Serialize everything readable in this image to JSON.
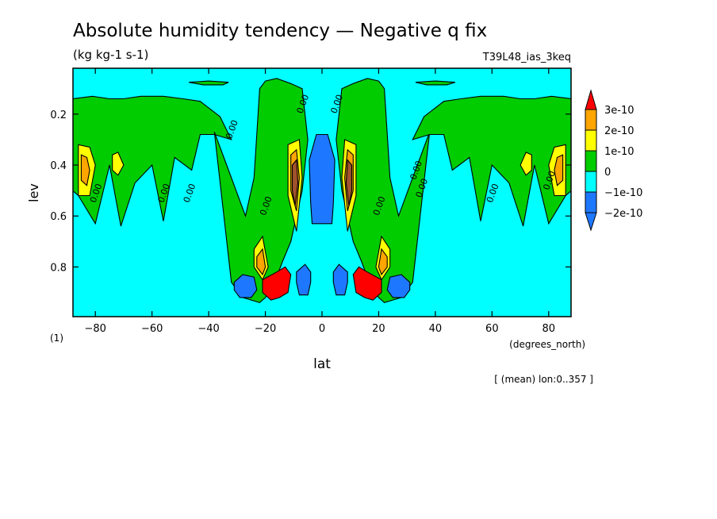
{
  "chart_data": {
    "type": "heatmap",
    "title": "Absolute humidity tendency — Negative q fix",
    "units": "(kg kg-1 s-1)",
    "experiment": "T39L48_ias_3keq",
    "xlabel": "lat",
    "xunits": "(degrees_north)",
    "ylabel": "lev",
    "yunits": "(1)",
    "footnote": "[ (mean) lon:0..357 ]",
    "xlim": [
      -87.9,
      87.9
    ],
    "ylim": [
      0.995,
      0.02
    ],
    "xticks": [
      -80,
      -60,
      -40,
      -20,
      0,
      20,
      40,
      60,
      80
    ],
    "yticks": [
      0.2,
      0.4,
      0.6,
      0.8
    ],
    "contour_label": "0.00",
    "colorbar": [
      {
        "label": "3e-10",
        "color": "#ff0000"
      },
      {
        "label": "2e-10",
        "color": "#ffa500"
      },
      {
        "label": "1e-10",
        "color": "#ffff00"
      },
      {
        "label": "0",
        "color": "#00cc00"
      },
      {
        "label": "−1e-10",
        "color": "#00ffff"
      },
      {
        "label": "−2e-10",
        "color": "#1e78ff"
      }
    ],
    "colors": {
      "gt3e-10": "#ff0000",
      "2e-10_3e-10": "#ffa500",
      "1e-10_2e-10": "#ffff00",
      "0_1e-10": "#00cc00",
      "-1e-10_0": "#00ffff",
      "lt-1e-10": "#1e78ff",
      "dark_core": "#a0522d"
    },
    "regions": [
      {
        "level": "0_1e-10",
        "lat": [
          -88,
          -81,
          -75,
          -70,
          -64,
          -56,
          -49,
          -43,
          -36,
          -32,
          -38,
          -43,
          -46,
          -52,
          -56,
          -60,
          -66,
          -71,
          -75,
          -80,
          -86,
          -88
        ],
        "lev": [
          0.14,
          0.13,
          0.14,
          0.14,
          0.13,
          0.13,
          0.14,
          0.15,
          0.21,
          0.3,
          0.28,
          0.28,
          0.42,
          0.37,
          0.62,
          0.4,
          0.47,
          0.64,
          0.4,
          0.63,
          0.52,
          0.5
        ]
      },
      {
        "level": "0_1e-10",
        "lat": [
          -22,
          -20,
          -16,
          -11,
          -7,
          -5,
          -7,
          -9,
          -11,
          -14,
          -16,
          -18,
          -20,
          -22,
          -28,
          -32,
          -38,
          -32,
          -27,
          -24,
          -22
        ],
        "lev": [
          0.1,
          0.07,
          0.06,
          0.08,
          0.1,
          0.3,
          0.5,
          0.6,
          0.7,
          0.78,
          0.84,
          0.88,
          0.92,
          0.94,
          0.92,
          0.86,
          0.27,
          0.45,
          0.6,
          0.45,
          0.1
        ]
      },
      {
        "level": "0_1e-10",
        "lat": [
          22,
          20,
          16,
          11,
          7,
          5,
          7,
          9,
          11,
          14,
          16,
          18,
          20,
          22,
          28,
          32,
          38,
          32,
          27,
          24,
          22
        ],
        "lev": [
          0.1,
          0.07,
          0.06,
          0.08,
          0.1,
          0.3,
          0.5,
          0.6,
          0.7,
          0.78,
          0.84,
          0.88,
          0.92,
          0.94,
          0.92,
          0.86,
          0.27,
          0.45,
          0.6,
          0.45,
          0.1
        ]
      },
      {
        "level": "0_1e-10",
        "lat": [
          88,
          81,
          75,
          70,
          64,
          56,
          49,
          43,
          36,
          32,
          38,
          43,
          46,
          52,
          56,
          60,
          66,
          71,
          75,
          80,
          86,
          88
        ],
        "lev": [
          0.14,
          0.13,
          0.14,
          0.14,
          0.13,
          0.13,
          0.14,
          0.15,
          0.21,
          0.3,
          0.28,
          0.28,
          0.42,
          0.37,
          0.62,
          0.4,
          0.47,
          0.64,
          0.4,
          0.63,
          0.52,
          0.5
        ]
      },
      {
        "level": "0_1e-10",
        "lat": [
          -47,
          -40,
          -33,
          -35,
          -42,
          -47
        ],
        "lev": [
          0.075,
          0.07,
          0.075,
          0.085,
          0.085,
          0.075
        ]
      },
      {
        "level": "0_1e-10",
        "lat": [
          33,
          40,
          47,
          44,
          37,
          33
        ],
        "lev": [
          0.075,
          0.07,
          0.075,
          0.085,
          0.085,
          0.075
        ]
      },
      {
        "level": "1e-10_2e-10",
        "lat": [
          -86,
          -82,
          -80,
          -82,
          -86
        ],
        "lev": [
          0.32,
          0.33,
          0.4,
          0.52,
          0.52
        ]
      },
      {
        "level": "1e-10_2e-10",
        "lat": [
          -74,
          -72,
          -70,
          -72,
          -74
        ],
        "lev": [
          0.36,
          0.35,
          0.4,
          0.44,
          0.42
        ]
      },
      {
        "level": "1e-10_2e-10",
        "lat": [
          -12,
          -8,
          -7,
          -9,
          -12
        ],
        "lev": [
          0.32,
          0.3,
          0.45,
          0.66,
          0.52
        ]
      },
      {
        "level": "1e-10_2e-10",
        "lat": [
          -24,
          -21,
          -19,
          -21,
          -24
        ],
        "lev": [
          0.73,
          0.68,
          0.8,
          0.85,
          0.8
        ]
      },
      {
        "level": "1e-10_2e-10",
        "lat": [
          12,
          8,
          7,
          9,
          12
        ],
        "lev": [
          0.32,
          0.3,
          0.45,
          0.66,
          0.52
        ]
      },
      {
        "level": "1e-10_2e-10",
        "lat": [
          24,
          21,
          19,
          21,
          24
        ],
        "lev": [
          0.73,
          0.68,
          0.8,
          0.85,
          0.8
        ]
      },
      {
        "level": "1e-10_2e-10",
        "lat": [
          86,
          82,
          80,
          82,
          86
        ],
        "lev": [
          0.32,
          0.33,
          0.4,
          0.52,
          0.52
        ]
      },
      {
        "level": "1e-10_2e-10",
        "lat": [
          74,
          72,
          70,
          72,
          74
        ],
        "lev": [
          0.36,
          0.35,
          0.4,
          0.44,
          0.42
        ]
      },
      {
        "level": "2e-10_3e-10",
        "lat": [
          -11,
          -9,
          -8,
          -9,
          -11
        ],
        "lev": [
          0.36,
          0.34,
          0.45,
          0.58,
          0.5
        ]
      },
      {
        "level": "2e-10_3e-10",
        "lat": [
          -23,
          -21,
          -20,
          -21,
          -23
        ],
        "lev": [
          0.76,
          0.73,
          0.8,
          0.83,
          0.8
        ]
      },
      {
        "level": "2e-10_3e-10",
        "lat": [
          11,
          9,
          8,
          9,
          11
        ],
        "lev": [
          0.36,
          0.34,
          0.45,
          0.58,
          0.5
        ]
      },
      {
        "level": "2e-10_3e-10",
        "lat": [
          23,
          21,
          20,
          21,
          23
        ],
        "lev": [
          0.76,
          0.73,
          0.8,
          0.83,
          0.8
        ]
      },
      {
        "level": "2e-10_3e-10",
        "lat": [
          -85,
          -83,
          -82,
          -83,
          -85
        ],
        "lev": [
          0.36,
          0.37,
          0.42,
          0.48,
          0.46
        ]
      },
      {
        "level": "2e-10_3e-10",
        "lat": [
          85,
          83,
          82,
          83,
          85
        ],
        "lev": [
          0.36,
          0.37,
          0.42,
          0.48,
          0.46
        ]
      },
      {
        "level": "dark_core",
        "lat": [
          -10.5,
          -9,
          -8.5,
          -9.5,
          -10.5
        ],
        "lev": [
          0.4,
          0.38,
          0.47,
          0.56,
          0.5
        ]
      },
      {
        "level": "dark_core",
        "lat": [
          10.5,
          9,
          8.5,
          9.5,
          10.5
        ],
        "lev": [
          0.4,
          0.38,
          0.47,
          0.56,
          0.5
        ]
      },
      {
        "level": "lt-1e-10",
        "lat": [
          -4.5,
          -2,
          2,
          4.5,
          4,
          3.5,
          -3.5,
          -4,
          -4.5
        ],
        "lev": [
          0.38,
          0.28,
          0.28,
          0.38,
          0.55,
          0.63,
          0.63,
          0.55,
          0.38
        ]
      },
      {
        "level": "lt-1e-10",
        "lat": [
          -31,
          -28,
          -24,
          -23,
          -25,
          -29,
          -31
        ],
        "lev": [
          0.86,
          0.83,
          0.84,
          0.89,
          0.92,
          0.92,
          0.89
        ]
      },
      {
        "level": "lt-1e-10",
        "lat": [
          -9,
          -6,
          -4,
          -4,
          -5,
          -8,
          -9
        ],
        "lev": [
          0.82,
          0.79,
          0.82,
          0.86,
          0.91,
          0.91,
          0.86
        ]
      },
      {
        "level": "lt-1e-10",
        "lat": [
          31,
          28,
          24,
          23,
          25,
          29,
          31
        ],
        "lev": [
          0.86,
          0.83,
          0.84,
          0.89,
          0.92,
          0.92,
          0.89
        ]
      },
      {
        "level": "lt-1e-10",
        "lat": [
          9,
          6,
          4,
          4,
          5,
          8,
          9
        ],
        "lev": [
          0.82,
          0.79,
          0.82,
          0.86,
          0.91,
          0.91,
          0.86
        ]
      },
      {
        "level": "gt3e-10",
        "lat": [
          -21,
          -16,
          -13,
          -11,
          -12,
          -15,
          -18,
          -21
        ],
        "lev": [
          0.85,
          0.82,
          0.8,
          0.83,
          0.9,
          0.92,
          0.93,
          0.9
        ]
      },
      {
        "level": "gt3e-10",
        "lat": [
          21,
          16,
          13,
          11,
          12,
          15,
          18,
          21
        ],
        "lev": [
          0.85,
          0.82,
          0.8,
          0.83,
          0.9,
          0.92,
          0.93,
          0.9
        ]
      }
    ],
    "contour_label_positions": [
      {
        "lat": -7,
        "lev": 0.2
      },
      {
        "lat": 5,
        "lev": 0.2
      },
      {
        "lat": -32,
        "lev": 0.3
      },
      {
        "lat": 33,
        "lev": 0.46
      },
      {
        "lat": -56,
        "lev": 0.55
      },
      {
        "lat": -47,
        "lev": 0.55
      },
      {
        "lat": -20,
        "lev": 0.6
      },
      {
        "lat": 20,
        "lev": 0.6
      },
      {
        "lat": 60,
        "lev": 0.55
      },
      {
        "lat": 80,
        "lev": 0.5
      },
      {
        "lat": -80,
        "lev": 0.55
      },
      {
        "lat": 35,
        "lev": 0.53
      }
    ]
  }
}
